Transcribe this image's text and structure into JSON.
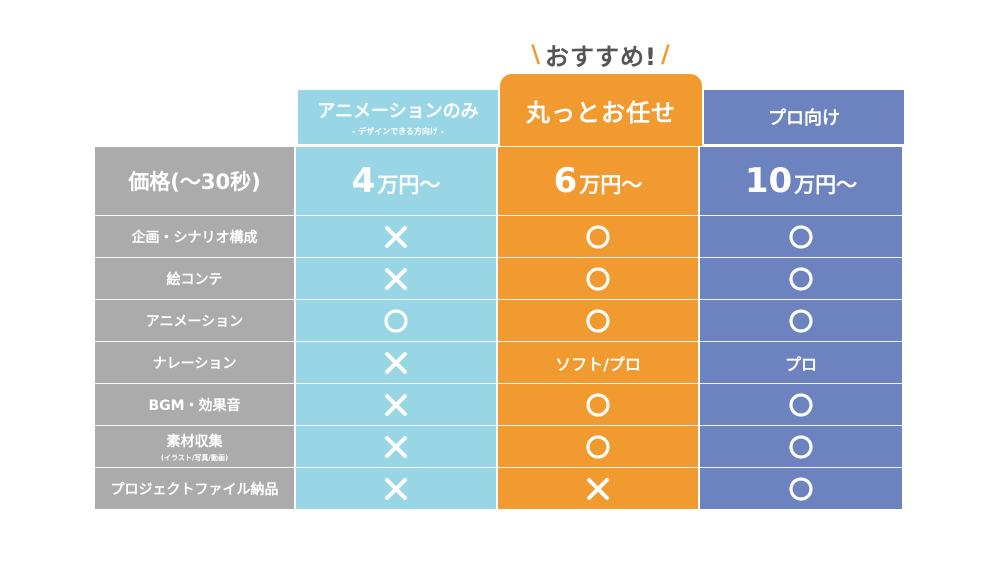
{
  "recommend": {
    "left_slash": "\\",
    "text": "おすすめ!",
    "right_slash": "/"
  },
  "headers": {
    "animation_only": {
      "title": "アニメーションのみ",
      "subtitle": "- デザインできる方向け -"
    },
    "full_service": {
      "title": "丸っとお任せ"
    },
    "pro": {
      "title": "プロ向け"
    }
  },
  "price_row": {
    "label": "価格(〜30秒)",
    "animation_only": {
      "number": "4",
      "unit": "万円〜"
    },
    "full_service": {
      "number": "6",
      "unit": "万円〜"
    },
    "pro": {
      "number": "10",
      "unit": "万円〜"
    }
  },
  "rows": [
    {
      "label": "企画・シナリオ構成",
      "note": "",
      "animation_only": "×",
      "full_service": "○",
      "pro": "○"
    },
    {
      "label": "絵コンテ",
      "note": "",
      "animation_only": "×",
      "full_service": "○",
      "pro": "○"
    },
    {
      "label": "アニメーション",
      "note": "",
      "animation_only": "○",
      "full_service": "○",
      "pro": "○"
    },
    {
      "label": "ナレーション",
      "note": "",
      "animation_only": "×",
      "full_service": "ソフト/プロ",
      "pro": "プロ"
    },
    {
      "label": "BGM・効果音",
      "note": "",
      "animation_only": "×",
      "full_service": "○",
      "pro": "○"
    },
    {
      "label": "素材収集",
      "note": "(イラスト/写真/動画)",
      "animation_only": "×",
      "full_service": "○",
      "pro": "○"
    },
    {
      "label": "プロジェクトファイル納品",
      "note": "",
      "animation_only": "×",
      "full_service": "×",
      "pro": "○"
    }
  ],
  "colors": {
    "animation_only": "#98D6E6",
    "full_service": "#F09A2F",
    "pro": "#6C83C0",
    "label": "#ABABAB"
  }
}
